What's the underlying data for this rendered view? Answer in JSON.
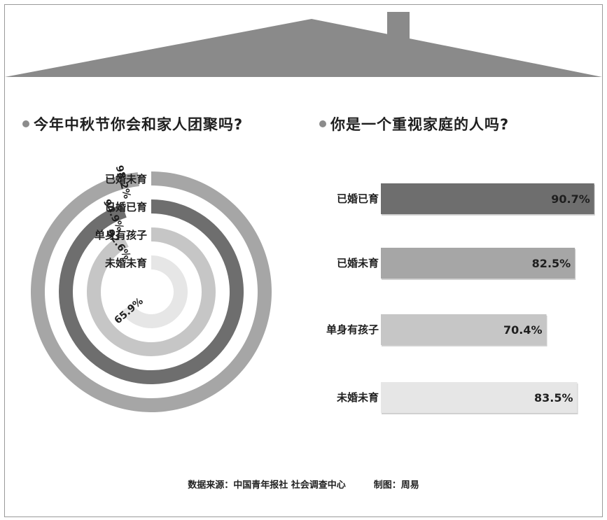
{
  "charts_header": {},
  "left_chart": {
    "title": "今年中秋节你会和家人团聚吗?"
  },
  "right_chart": {
    "title": "你是一个重视家庭的人吗?"
  },
  "footer": {
    "source": "数据来源：中国青年报社 社会调查中心",
    "credit": "制图：周易"
  },
  "chart_data": [
    {
      "type": "radial-bar",
      "title": "今年中秋节你会和家人团聚吗?",
      "categories": [
        "已婚未育",
        "已婚已育",
        "单身有孩子",
        "未婚未育"
      ],
      "values": [
        98.2,
        94.9,
        92.6,
        65.9
      ],
      "labels": [
        "98.2%",
        "94.9%",
        "92.6%",
        "65.9%"
      ],
      "unit": "%",
      "colors": [
        "#a6a6a6",
        "#6e6e6e",
        "#c6c6c6",
        "#e6e6e6"
      ]
    },
    {
      "type": "bar",
      "orientation": "horizontal",
      "title": "你是一个重视家庭的人吗?",
      "categories": [
        "已婚已育",
        "已婚未育",
        "单身有孩子",
        "未婚未育"
      ],
      "values": [
        90.7,
        82.5,
        70.4,
        83.5
      ],
      "labels": [
        "90.7%",
        "82.5%",
        "70.4%",
        "83.5%"
      ],
      "unit": "%",
      "xlim": [
        0,
        100
      ],
      "colors": [
        "#6e6e6e",
        "#a6a6a6",
        "#c6c6c6",
        "#e6e6e6"
      ]
    }
  ]
}
